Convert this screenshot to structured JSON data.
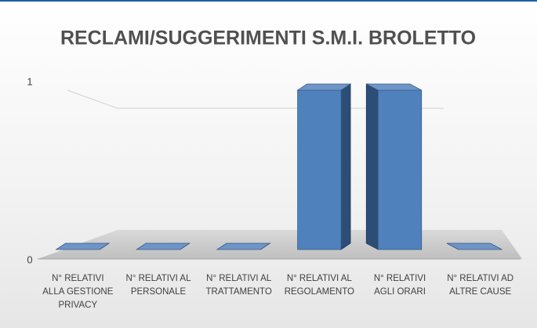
{
  "chart_data": {
    "type": "bar3d",
    "title": "RECLAMI/SUGGERIMENTI S.M.I. BROLETTO",
    "categories": [
      "N° RELATIVI\nALLA GESTIONE\nPRIVACY",
      "N° RELATIVI AL\nPERSONALE",
      "N° RELATIVI AL\nTRATTAMENTO",
      "N° RELATIVI AL\nREGOLAMENTO",
      "N° RELATIVI\nAGLI ORARI",
      "N° RELATIVI AD\nALTRE CAUSE"
    ],
    "values": [
      0,
      0,
      0,
      1,
      1,
      0
    ],
    "color": "#4f81bd",
    "ylim": [
      0,
      1
    ],
    "yticks": [
      0,
      1
    ],
    "grid": true
  }
}
